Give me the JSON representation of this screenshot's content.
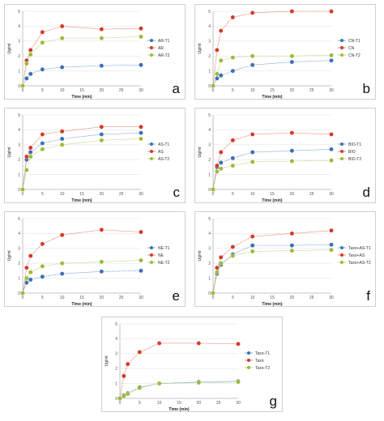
{
  "colors": {
    "t1": "#3d6fb5",
    "mid": "#d23a2a",
    "t2": "#9cbb38"
  },
  "panels": [
    {
      "letter": "a",
      "chart_data": {
        "type": "line",
        "x": [
          0,
          1,
          2,
          5,
          10,
          20,
          30
        ],
        "xlim": [
          0,
          30
        ],
        "ylim": [
          0,
          5
        ],
        "xticks": [
          "0",
          "5",
          "10",
          "15",
          "20",
          "25",
          "30"
        ],
        "yticks": [
          "0",
          "1",
          "2",
          "3",
          "4",
          "5"
        ],
        "xlabel": "Time (min)",
        "ylabel": "Ug/ml",
        "series": [
          {
            "name": "AR-T1",
            "color": "t1",
            "values": [
              0,
              0.5,
              0.8,
              1.1,
              1.25,
              1.35,
              1.4
            ]
          },
          {
            "name": "AR",
            "color": "mid",
            "values": [
              0,
              1.7,
              2.4,
              3.6,
              4.0,
              3.8,
              3.85
            ]
          },
          {
            "name": "AR-T2",
            "color": "t2",
            "values": [
              0,
              1.5,
              2.1,
              2.9,
              3.2,
              3.2,
              3.3
            ]
          }
        ]
      }
    },
    {
      "letter": "b",
      "chart_data": {
        "type": "line",
        "x": [
          0,
          1,
          2,
          5,
          10,
          20,
          30
        ],
        "xlim": [
          0,
          30
        ],
        "ylim": [
          0,
          5
        ],
        "xticks": [
          "0",
          "5",
          "10",
          "15",
          "20",
          "25",
          "30"
        ],
        "yticks": [
          "0",
          "1",
          "2",
          "3",
          "4",
          "5"
        ],
        "xlabel": "Time (min)",
        "ylabel": "Ug/ml",
        "series": [
          {
            "name": "CN-T1",
            "color": "t1",
            "values": [
              0,
              0.5,
              0.7,
              1.0,
              1.4,
              1.6,
              1.7
            ]
          },
          {
            "name": "CN",
            "color": "mid",
            "values": [
              0,
              2.4,
              3.7,
              4.6,
              4.9,
              5.0,
              5.0
            ]
          },
          {
            "name": "CN-T2",
            "color": "t2",
            "values": [
              0,
              0.8,
              1.7,
              1.9,
              2.0,
              2.0,
              2.05
            ]
          }
        ]
      }
    },
    {
      "letter": "c",
      "chart_data": {
        "type": "line",
        "x": [
          0,
          1,
          2,
          5,
          10,
          20,
          30
        ],
        "xlim": [
          0,
          30
        ],
        "ylim": [
          0,
          5
        ],
        "xticks": [
          "0",
          "5",
          "10",
          "15",
          "20",
          "25",
          "30"
        ],
        "yticks": [
          "0",
          "1",
          "2",
          "3",
          "4",
          "5"
        ],
        "xlabel": "Time (min)",
        "ylabel": "Ug/ml",
        "series": [
          {
            "name": "AS-T1",
            "color": "t1",
            "values": [
              0,
              2.0,
              2.5,
              3.1,
              3.4,
              3.7,
              3.8
            ]
          },
          {
            "name": "AS",
            "color": "mid",
            "values": [
              0,
              2.2,
              2.8,
              3.7,
              3.9,
              4.2,
              4.2
            ]
          },
          {
            "name": "AS-T2",
            "color": "t2",
            "values": [
              0,
              1.3,
              2.2,
              2.7,
              3.0,
              3.3,
              3.4
            ]
          }
        ]
      }
    },
    {
      "letter": "d",
      "chart_data": {
        "type": "line",
        "x": [
          0,
          1,
          2,
          5,
          10,
          20,
          30
        ],
        "xlim": [
          0,
          30
        ],
        "ylim": [
          0,
          5
        ],
        "xticks": [
          "0",
          "5",
          "10",
          "15",
          "20",
          "25",
          "30"
        ],
        "yticks": [
          "0",
          "1",
          "2",
          "3",
          "4",
          "5"
        ],
        "xlabel": "Time (min)",
        "ylabel": "Ug/ml",
        "series": [
          {
            "name": "BIO-T1",
            "color": "t1",
            "values": [
              0,
              1.5,
              1.8,
              2.1,
              2.5,
              2.6,
              2.7
            ]
          },
          {
            "name": "BIO",
            "color": "mid",
            "values": [
              0,
              1.6,
              2.5,
              3.3,
              3.7,
              3.8,
              3.7
            ]
          },
          {
            "name": "BIO-T2",
            "color": "t2",
            "values": [
              0,
              1.2,
              1.4,
              1.6,
              1.85,
              1.9,
              1.95
            ]
          }
        ]
      }
    },
    {
      "letter": "e",
      "chart_data": {
        "type": "line",
        "x": [
          0,
          1,
          2,
          5,
          10,
          20,
          30
        ],
        "xlim": [
          0,
          30
        ],
        "ylim": [
          0,
          5
        ],
        "xticks": [
          "0",
          "5",
          "10",
          "15",
          "20",
          "25",
          "30"
        ],
        "yticks": [
          "0",
          "1",
          "2",
          "3",
          "4",
          "5"
        ],
        "xlabel": "Time (min)",
        "ylabel": "Ug/ml",
        "series": [
          {
            "name": "NE-T1",
            "color": "t1",
            "values": [
              0,
              0.7,
              0.9,
              1.1,
              1.3,
              1.45,
              1.5
            ]
          },
          {
            "name": "NE",
            "color": "mid",
            "values": [
              0,
              1.7,
              2.5,
              3.3,
              3.9,
              4.25,
              4.1
            ]
          },
          {
            "name": "NE-T2",
            "color": "t2",
            "values": [
              0,
              1.0,
              1.4,
              1.8,
              2.0,
              2.1,
              2.2
            ]
          }
        ]
      }
    },
    {
      "letter": "f",
      "chart_data": {
        "type": "line",
        "x": [
          0,
          1,
          2,
          5,
          10,
          20,
          30
        ],
        "xlim": [
          0,
          30
        ],
        "ylim": [
          0,
          5
        ],
        "xticks": [
          "0",
          "5",
          "10",
          "15",
          "20",
          "25",
          "30"
        ],
        "yticks": [
          "0",
          "1",
          "2",
          "3",
          "4",
          "5"
        ],
        "xlabel": "Time (min)",
        "ylabel": "Ug/ml",
        "series": [
          {
            "name": "Taxo+AS-T1",
            "color": "t1",
            "values": [
              0,
              1.3,
              1.9,
              2.6,
              3.2,
              3.2,
              3.25
            ]
          },
          {
            "name": "Taxo+AS",
            "color": "mid",
            "values": [
              0,
              1.7,
              2.4,
              3.1,
              3.8,
              4.0,
              4.2
            ]
          },
          {
            "name": "Taxo+AS-T2",
            "color": "t2",
            "values": [
              0,
              1.4,
              2.0,
              2.5,
              2.8,
              2.85,
              2.9
            ]
          }
        ]
      }
    },
    {
      "letter": "g",
      "chart_data": {
        "type": "line",
        "x": [
          0,
          1,
          2,
          5,
          10,
          20,
          30
        ],
        "xlim": [
          0,
          30
        ],
        "ylim": [
          0,
          5
        ],
        "xticks": [
          "0",
          "5",
          "10",
          "15",
          "20",
          "25",
          "30"
        ],
        "yticks": [
          "0",
          "1",
          "2",
          "3",
          "4",
          "5"
        ],
        "xlabel": "Time (min)",
        "ylabel": "Ug/ml",
        "series": [
          {
            "name": "Taxo-T1",
            "color": "t1",
            "values": [
              0,
              0.2,
              0.35,
              0.75,
              1.0,
              1.1,
              1.15
            ]
          },
          {
            "name": "Taxo",
            "color": "mid",
            "values": [
              0,
              1.5,
              2.3,
              3.1,
              3.7,
              3.7,
              3.65
            ]
          },
          {
            "name": "Taxo-T2",
            "color": "t2",
            "values": [
              0,
              0.15,
              0.3,
              0.7,
              1.0,
              1.05,
              1.1
            ]
          }
        ]
      }
    }
  ]
}
